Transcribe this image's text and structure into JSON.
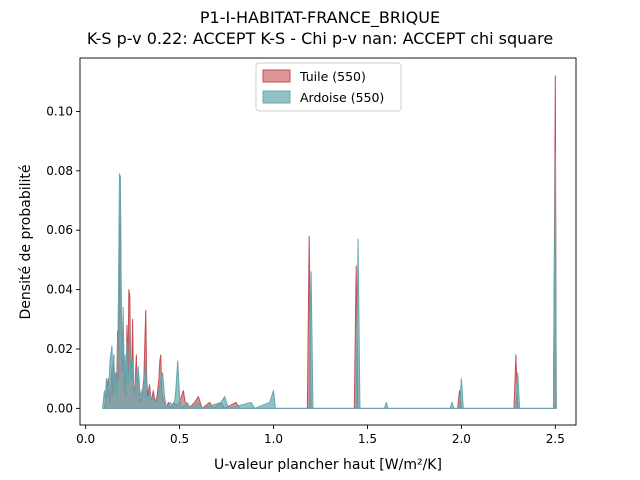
{
  "chart_data": {
    "type": "area",
    "title": "P1-I-HABITAT-FRANCE_BRIQUE",
    "subtitle": "K-S p-v 0.22: ACCEPT K-S - Chi p-v nan: ACCEPT chi square",
    "xlabel": "U-valeur plancher haut [W/m²/K]",
    "ylabel": "Densité de probabilité",
    "xlim": [
      -0.03,
      2.61
    ],
    "ylim": [
      -0.0056,
      0.118
    ],
    "x_ticks": [
      "0.0",
      "0.5",
      "1.0",
      "1.5",
      "2.0",
      "2.5"
    ],
    "y_ticks": [
      "0.00",
      "0.02",
      "0.04",
      "0.06",
      "0.08",
      "0.10"
    ],
    "legend_position": "upper center",
    "grid": false,
    "series": [
      {
        "name": "Tuile (550)",
        "color": "#c44e52",
        "points": [
          [
            0.1,
            0.0
          ],
          [
            0.11,
            0.004
          ],
          [
            0.12,
            0.01
          ],
          [
            0.13,
            0.002
          ],
          [
            0.14,
            0.014
          ],
          [
            0.145,
            0.004
          ],
          [
            0.15,
            0.018
          ],
          [
            0.155,
            0.006
          ],
          [
            0.16,
            0.012
          ],
          [
            0.165,
            0.004
          ],
          [
            0.17,
            0.026
          ],
          [
            0.175,
            0.01
          ],
          [
            0.18,
            0.046
          ],
          [
            0.185,
            0.07
          ],
          [
            0.19,
            0.03
          ],
          [
            0.195,
            0.012
          ],
          [
            0.2,
            0.022
          ],
          [
            0.205,
            0.006
          ],
          [
            0.21,
            0.016
          ],
          [
            0.215,
            0.004
          ],
          [
            0.22,
            0.028
          ],
          [
            0.225,
            0.012
          ],
          [
            0.23,
            0.04
          ],
          [
            0.235,
            0.038
          ],
          [
            0.24,
            0.016
          ],
          [
            0.245,
            0.01
          ],
          [
            0.25,
            0.03
          ],
          [
            0.255,
            0.008
          ],
          [
            0.26,
            0.004
          ],
          [
            0.27,
            0.018
          ],
          [
            0.275,
            0.006
          ],
          [
            0.28,
            0.012
          ],
          [
            0.29,
            0.002
          ],
          [
            0.3,
            0.004
          ],
          [
            0.31,
            0.01
          ],
          [
            0.315,
            0.022
          ],
          [
            0.32,
            0.033
          ],
          [
            0.325,
            0.01
          ],
          [
            0.33,
            0.004
          ],
          [
            0.34,
            0.008
          ],
          [
            0.35,
            0.002
          ],
          [
            0.36,
            0.006
          ],
          [
            0.37,
            0.002
          ],
          [
            0.38,
            0.004
          ],
          [
            0.39,
            0.01
          ],
          [
            0.395,
            0.016
          ],
          [
            0.4,
            0.018
          ],
          [
            0.405,
            0.006
          ],
          [
            0.41,
            0.004
          ],
          [
            0.42,
            0.002
          ],
          [
            0.43,
            0.0
          ],
          [
            0.44,
            0.002
          ],
          [
            0.45,
            0.0
          ],
          [
            0.47,
            0.002
          ],
          [
            0.48,
            0.001
          ],
          [
            0.5,
            0.002
          ],
          [
            0.52,
            0.006
          ],
          [
            0.53,
            0.002
          ],
          [
            0.55,
            0.0
          ],
          [
            0.58,
            0.002
          ],
          [
            0.6,
            0.004
          ],
          [
            0.62,
            0.0
          ],
          [
            0.66,
            0.002
          ],
          [
            0.68,
            0.0
          ],
          [
            0.72,
            0.002
          ],
          [
            0.74,
            0.0
          ],
          [
            0.8,
            0.002
          ],
          [
            0.82,
            0.0
          ],
          [
            1.18,
            0.0
          ],
          [
            1.19,
            0.058
          ],
          [
            1.2,
            0.0
          ],
          [
            1.43,
            0.0
          ],
          [
            1.44,
            0.048
          ],
          [
            1.45,
            0.0
          ],
          [
            1.98,
            0.0
          ],
          [
            1.99,
            0.006
          ],
          [
            2.0,
            0.0
          ],
          [
            2.28,
            0.0
          ],
          [
            2.29,
            0.018
          ],
          [
            2.3,
            0.0
          ],
          [
            2.49,
            0.0
          ],
          [
            2.5,
            0.112
          ],
          [
            2.505,
            0.0
          ]
        ]
      },
      {
        "name": "Ardoise (550)",
        "color": "#64a6ae",
        "points": [
          [
            0.09,
            0.0
          ],
          [
            0.1,
            0.006
          ],
          [
            0.105,
            0.002
          ],
          [
            0.11,
            0.01
          ],
          [
            0.12,
            0.004
          ],
          [
            0.13,
            0.016
          ],
          [
            0.14,
            0.021
          ],
          [
            0.145,
            0.008
          ],
          [
            0.15,
            0.018
          ],
          [
            0.155,
            0.006
          ],
          [
            0.16,
            0.012
          ],
          [
            0.165,
            0.004
          ],
          [
            0.17,
            0.014
          ],
          [
            0.175,
            0.04
          ],
          [
            0.18,
            0.079
          ],
          [
            0.185,
            0.078
          ],
          [
            0.19,
            0.036
          ],
          [
            0.195,
            0.016
          ],
          [
            0.2,
            0.034
          ],
          [
            0.205,
            0.01
          ],
          [
            0.21,
            0.018
          ],
          [
            0.215,
            0.006
          ],
          [
            0.22,
            0.022
          ],
          [
            0.225,
            0.008
          ],
          [
            0.23,
            0.012
          ],
          [
            0.235,
            0.028
          ],
          [
            0.24,
            0.01
          ],
          [
            0.25,
            0.016
          ],
          [
            0.255,
            0.006
          ],
          [
            0.26,
            0.004
          ],
          [
            0.27,
            0.012
          ],
          [
            0.275,
            0.004
          ],
          [
            0.28,
            0.014
          ],
          [
            0.29,
            0.004
          ],
          [
            0.3,
            0.006
          ],
          [
            0.31,
            0.008
          ],
          [
            0.315,
            0.012
          ],
          [
            0.32,
            0.016
          ],
          [
            0.325,
            0.004
          ],
          [
            0.33,
            0.002
          ],
          [
            0.34,
            0.006
          ],
          [
            0.35,
            0.002
          ],
          [
            0.36,
            0.004
          ],
          [
            0.37,
            0.002
          ],
          [
            0.38,
            0.002
          ],
          [
            0.39,
            0.006
          ],
          [
            0.4,
            0.01
          ],
          [
            0.41,
            0.012
          ],
          [
            0.42,
            0.004
          ],
          [
            0.43,
            0.0
          ],
          [
            0.45,
            0.002
          ],
          [
            0.47,
            0.0
          ],
          [
            0.48,
            0.006
          ],
          [
            0.49,
            0.016
          ],
          [
            0.5,
            0.004
          ],
          [
            0.51,
            0.0
          ],
          [
            0.54,
            0.002
          ],
          [
            0.56,
            0.0
          ],
          [
            0.6,
            0.002
          ],
          [
            0.62,
            0.0
          ],
          [
            0.72,
            0.002
          ],
          [
            0.74,
            0.004
          ],
          [
            0.76,
            0.0
          ],
          [
            0.88,
            0.002
          ],
          [
            0.9,
            0.0
          ],
          [
            0.98,
            0.002
          ],
          [
            1.0,
            0.006
          ],
          [
            1.01,
            0.0
          ],
          [
            1.19,
            0.0
          ],
          [
            1.2,
            0.046
          ],
          [
            1.21,
            0.0
          ],
          [
            1.44,
            0.0
          ],
          [
            1.45,
            0.057
          ],
          [
            1.46,
            0.0
          ],
          [
            1.59,
            0.0
          ],
          [
            1.6,
            0.002
          ],
          [
            1.61,
            0.0
          ],
          [
            1.94,
            0.0
          ],
          [
            1.95,
            0.002
          ],
          [
            1.96,
            0.0
          ],
          [
            1.99,
            0.0
          ],
          [
            2.0,
            0.01
          ],
          [
            2.01,
            0.0
          ],
          [
            2.29,
            0.0
          ],
          [
            2.3,
            0.012
          ],
          [
            2.31,
            0.0
          ],
          [
            2.49,
            0.0
          ],
          [
            2.5,
            0.086
          ],
          [
            2.505,
            0.0
          ]
        ]
      }
    ]
  }
}
